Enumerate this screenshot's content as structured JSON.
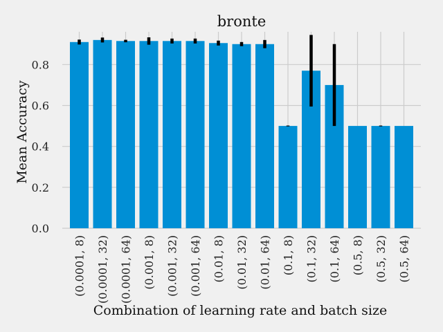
{
  "chart_data": {
    "type": "bar",
    "title": "bronte",
    "xlabel": "Combination of learning rate and batch size",
    "ylabel": "Mean Accuracy",
    "categories": [
      "(0.0001, 8)",
      "(0.0001, 32)",
      "(0.0001, 64)",
      "(0.001, 8)",
      "(0.001, 32)",
      "(0.001, 64)",
      "(0.01, 8)",
      "(0.01, 32)",
      "(0.01, 64)",
      "(0.1, 8)",
      "(0.1, 32)",
      "(0.1, 64)",
      "(0.5, 8)",
      "(0.5, 32)",
      "(0.5, 64)"
    ],
    "values": [
      0.91,
      0.92,
      0.915,
      0.915,
      0.915,
      0.915,
      0.905,
      0.9,
      0.9,
      0.5,
      0.77,
      0.7,
      0.5,
      0.5,
      0.5
    ],
    "errors": [
      0.012,
      0.012,
      0.006,
      0.018,
      0.012,
      0.012,
      0.012,
      0.01,
      0.02,
      0.002,
      0.175,
      0.2,
      0.0,
      0.002,
      0.0
    ],
    "yticks": [
      0.0,
      0.2,
      0.4,
      0.6,
      0.8
    ],
    "ylim": [
      0,
      0.96
    ],
    "grid": true,
    "bar_color": "#008fd5",
    "error_color": "#000000",
    "background": "#f0f0f0",
    "grid_color": "#cbcbcb"
  }
}
